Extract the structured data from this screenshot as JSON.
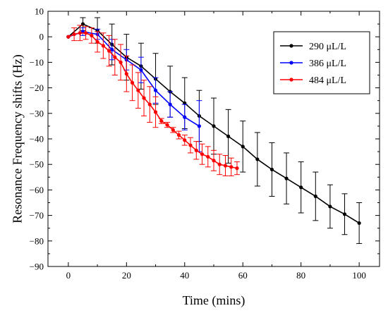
{
  "chart_data": {
    "type": "line",
    "title": "",
    "xlabel": "Time (mins)",
    "ylabel": "Resonance Frequency shifts (Hz)",
    "xlim": [
      -7,
      107
    ],
    "ylim": [
      -90,
      10
    ],
    "xticks": [
      0,
      20,
      40,
      60,
      80,
      100
    ],
    "yticks": [
      10,
      0,
      -10,
      -20,
      -30,
      -40,
      -50,
      -60,
      -70,
      -80,
      -90
    ],
    "xticks_minor": [
      10,
      30,
      50,
      70,
      90
    ],
    "yticks_minor": [
      5,
      -5,
      -15,
      -25,
      -35,
      -45,
      -55,
      -65,
      -75,
      -85
    ],
    "grid": false,
    "legend_position": "top-right",
    "series": [
      {
        "name": "290 μL/L",
        "color": "#000000",
        "x": [
          0,
          5,
          10,
          15,
          20,
          25,
          30,
          35,
          40,
          45,
          50,
          55,
          60,
          65,
          70,
          75,
          80,
          85,
          90,
          95,
          100
        ],
        "y": [
          0,
          5,
          2.5,
          -3,
          -8,
          -11.5,
          -16.5,
          -21.5,
          -26,
          -31,
          -35,
          -39,
          -43,
          -48,
          -52,
          -55.5,
          -59,
          -62.5,
          -66.5,
          -69.5,
          -73
        ],
        "err": [
          0,
          2.5,
          5,
          8,
          9,
          9,
          10,
          10,
          10,
          10,
          11,
          10.5,
          10,
          10.5,
          10.5,
          10,
          10,
          9.5,
          8.5,
          8,
          8
        ]
      },
      {
        "name": "386 μL/L",
        "color": "#0000ff",
        "x": [
          0,
          5,
          10,
          15,
          20,
          25,
          30,
          35,
          40,
          45
        ],
        "y": [
          0,
          2,
          1,
          -5,
          -9,
          -13,
          -21,
          -26.5,
          -31.5,
          -35
        ],
        "err": [
          0,
          1.5,
          2,
          4,
          4,
          5,
          5,
          5,
          5,
          10
        ]
      },
      {
        "name": "484 μL/L",
        "color": "#ff0000",
        "x": [
          0,
          2,
          4,
          6,
          8,
          10,
          12,
          14,
          16,
          18,
          20,
          22,
          24,
          26,
          28,
          30,
          32,
          34,
          36,
          38,
          40,
          42,
          44,
          46,
          48,
          50,
          52,
          54,
          56,
          58
        ],
        "y": [
          0,
          1,
          1.5,
          1.5,
          0.5,
          -2,
          -3.5,
          -5.5,
          -8,
          -10,
          -14.5,
          -18,
          -21,
          -24,
          -26.5,
          -29.5,
          -33,
          -34.5,
          -36.5,
          -38.5,
          -40.5,
          -42.5,
          -44.5,
          -46,
          -47,
          -48.5,
          -50,
          -50.5,
          -51,
          -51.5
        ],
        "err": [
          0,
          2.5,
          3,
          2.5,
          3,
          4,
          5,
          6,
          7,
          7,
          7,
          7,
          7,
          7,
          7,
          6,
          1,
          1,
          1,
          1.5,
          2,
          3,
          3.5,
          4,
          4,
          4,
          4,
          4,
          3.5,
          2.5
        ]
      }
    ]
  }
}
